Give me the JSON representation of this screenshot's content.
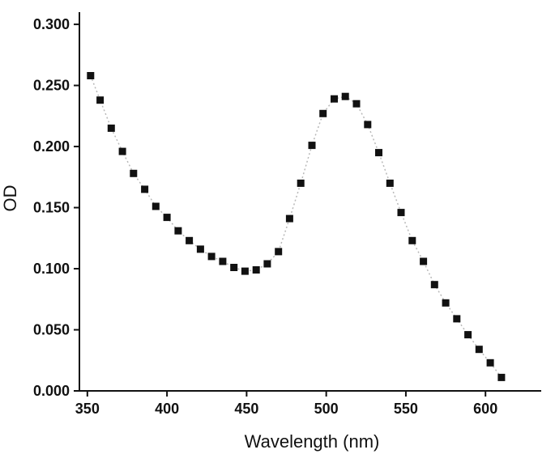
{
  "chart_data": {
    "type": "scatter",
    "xlabel": "Wavelength (nm)",
    "ylabel": "OD",
    "xlim": [
      345,
      635
    ],
    "ylim": [
      0.0,
      0.31
    ],
    "x_ticks": [
      350,
      400,
      450,
      500,
      550,
      600
    ],
    "x_tick_labels": [
      "350",
      "400",
      "450",
      "500",
      "550",
      "600"
    ],
    "y_ticks": [
      0.0,
      0.05,
      0.1,
      0.15,
      0.2,
      0.25,
      0.3
    ],
    "y_tick_labels": [
      "0.000",
      "0.050",
      "0.100",
      "0.150",
      "0.200",
      "0.250",
      "0.300"
    ],
    "grid": false,
    "marker_color": "#111111",
    "line_color": "#b8b8b8",
    "series": [
      {
        "x": [
          352,
          358,
          365,
          372,
          379,
          386,
          393,
          400,
          407,
          414,
          421,
          428,
          435,
          442,
          449,
          456,
          463,
          470,
          477,
          484,
          491,
          498,
          505,
          512,
          519,
          526,
          533,
          540,
          547,
          554,
          561,
          568,
          575,
          582,
          589,
          596,
          603,
          610
        ],
        "y": [
          0.258,
          0.238,
          0.215,
          0.196,
          0.178,
          0.165,
          0.151,
          0.142,
          0.131,
          0.123,
          0.116,
          0.11,
          0.106,
          0.101,
          0.098,
          0.099,
          0.104,
          0.114,
          0.141,
          0.17,
          0.201,
          0.227,
          0.239,
          0.241,
          0.235,
          0.218,
          0.195,
          0.17,
          0.146,
          0.123,
          0.106,
          0.087,
          0.072,
          0.059,
          0.046,
          0.034,
          0.023,
          0.011
        ]
      }
    ]
  }
}
